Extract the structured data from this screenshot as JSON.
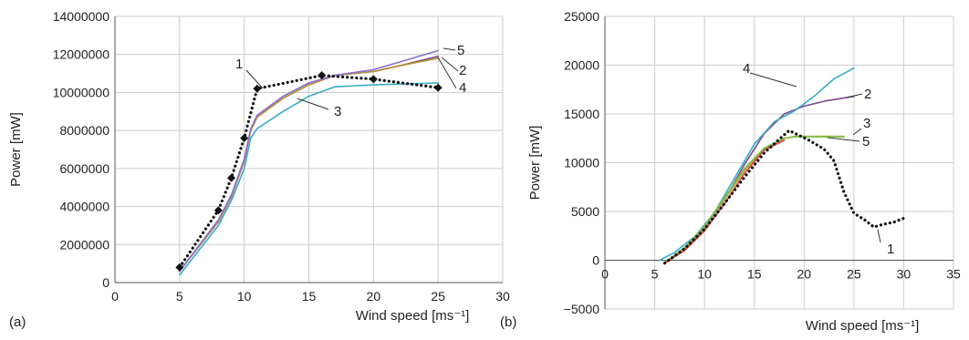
{
  "chart_data": [
    {
      "panel_label": "(a)",
      "type": "line",
      "xlabel": "Wind speed [ms⁻¹]",
      "ylabel": "Power [mW]",
      "xlim": [
        0,
        30
      ],
      "ylim": [
        0,
        14000000
      ],
      "xticks": [
        0,
        5,
        10,
        15,
        20,
        25,
        30
      ],
      "yticks": [
        0,
        2000000,
        4000000,
        6000000,
        8000000,
        10000000,
        12000000,
        14000000
      ],
      "grid": true,
      "series": [
        {
          "label": "1",
          "style": "dotted",
          "color": "#111111",
          "markers": true,
          "x": [
            5,
            8,
            9,
            10,
            11,
            16,
            20,
            25
          ],
          "y": [
            800000,
            3800000,
            5500000,
            7600000,
            10200000,
            10900000,
            10700000,
            10250000
          ]
        },
        {
          "label": "2",
          "style": "solid",
          "color": "#7a4a8a",
          "x": [
            5,
            8,
            9,
            10,
            10.5,
            11,
            13,
            15,
            17,
            20,
            22,
            25
          ],
          "y": [
            600000,
            3200000,
            4500000,
            6400000,
            8000000,
            8700000,
            9700000,
            10400000,
            10900000,
            11100000,
            11400000,
            11900000
          ]
        },
        {
          "label": "3",
          "style": "solid",
          "color": "#3aabc8",
          "x": [
            5,
            8,
            9,
            10,
            10.5,
            11,
            13,
            15,
            17,
            20,
            25
          ],
          "y": [
            400000,
            3000000,
            4300000,
            6000000,
            7600000,
            8100000,
            9000000,
            9800000,
            10300000,
            10400000,
            10500000
          ]
        },
        {
          "label": "4",
          "style": "solid",
          "color": "#b89030",
          "x": [
            5,
            8,
            9,
            10,
            10.5,
            11,
            13,
            15,
            17,
            20,
            22,
            25
          ],
          "y": [
            600000,
            3200000,
            4500000,
            6400000,
            8000000,
            8700000,
            9700000,
            10400000,
            10900000,
            11100000,
            11400000,
            11800000
          ]
        },
        {
          "label": "5",
          "style": "solid",
          "color": "#8a6fd0",
          "x": [
            5,
            8,
            9,
            10,
            10.5,
            11,
            13,
            15,
            17,
            20,
            22,
            25
          ],
          "y": [
            600000,
            3300000,
            4600000,
            6500000,
            8100000,
            8800000,
            9800000,
            10500000,
            10900000,
            11200000,
            11600000,
            12200000
          ]
        }
      ]
    },
    {
      "panel_label": "(b)",
      "type": "line",
      "xlabel": "Wind speed [ms⁻¹]",
      "ylabel": "Power [mW]",
      "xlim": [
        0,
        35
      ],
      "ylim": [
        -5000,
        25000
      ],
      "xticks": [
        0,
        5,
        10,
        15,
        20,
        25,
        30,
        35
      ],
      "yticks": [
        -5000,
        0,
        5000,
        10000,
        15000,
        20000,
        25000
      ],
      "grid": true,
      "series": [
        {
          "label": "1",
          "style": "dotted",
          "color": "#111111",
          "x": [
            6,
            8,
            10,
            12,
            14,
            16,
            17.5,
            18.5,
            19.5,
            20.5,
            22,
            23,
            24,
            25,
            26,
            27,
            28,
            29,
            30
          ],
          "y": [
            -300,
            1200,
            3200,
            5800,
            8500,
            11000,
            12400,
            13300,
            12800,
            12300,
            11400,
            10200,
            7000,
            4800,
            4200,
            3400,
            3700,
            3900,
            4300
          ]
        },
        {
          "label": "2",
          "style": "solid",
          "color": "#7a4a8a",
          "x": [
            6,
            8,
            10,
            12,
            14,
            16,
            18,
            20,
            22,
            25
          ],
          "y": [
            -300,
            1000,
            3300,
            6200,
            9800,
            13000,
            15000,
            15800,
            16300,
            16800
          ]
        },
        {
          "label": "3",
          "style": "solid",
          "color": "#b8a040",
          "x": [
            6,
            8,
            10,
            12,
            14,
            16,
            18,
            19,
            20,
            22,
            24
          ],
          "y": [
            -200,
            1200,
            3400,
            6200,
            9200,
            11400,
            12500,
            12700,
            12700,
            12700,
            12700
          ]
        },
        {
          "label": "4",
          "style": "solid",
          "color": "#3aabc8",
          "x": [
            5.5,
            7,
            9,
            11,
            13,
            15,
            17,
            19,
            21,
            23,
            25
          ],
          "y": [
            0,
            800,
            2400,
            4900,
            8400,
            11900,
            14200,
            15300,
            16800,
            18600,
            19700
          ]
        },
        {
          "label": "5",
          "style": "solid",
          "color": "#7cc040",
          "x": [
            6,
            8,
            10,
            12,
            14,
            16,
            18,
            19,
            20,
            22,
            24
          ],
          "y": [
            -200,
            1300,
            3500,
            6400,
            9400,
            11500,
            12500,
            12650,
            12650,
            12650,
            12650
          ]
        },
        {
          "label": "",
          "style": "solid",
          "color": "#e04040",
          "x": [
            6,
            8,
            10,
            12,
            14,
            16,
            18
          ],
          "y": [
            -300,
            1000,
            3000,
            5800,
            8900,
            11300,
            12300
          ]
        }
      ]
    }
  ]
}
